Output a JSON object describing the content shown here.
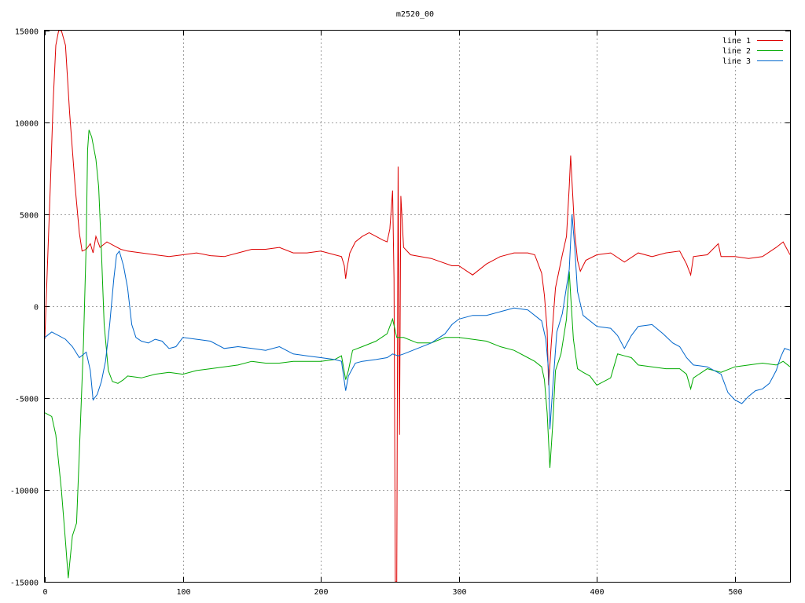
{
  "chart_data": {
    "type": "line",
    "title": "m2520_00",
    "xlabel": "",
    "ylabel": "",
    "xlim": [
      0,
      540
    ],
    "ylim": [
      -15000,
      15000
    ],
    "grid": true,
    "legend_position": "top-right",
    "x_ticks": [
      0,
      100,
      200,
      300,
      400,
      500
    ],
    "y_ticks": [
      -15000,
      -10000,
      -5000,
      0,
      5000,
      10000,
      15000
    ],
    "x_tick_labels": [
      "0",
      "100",
      "200",
      "300",
      "400",
      "500"
    ],
    "y_tick_labels": [
      "-15000",
      "-10000",
      "-5000",
      "0",
      "5000",
      "10000",
      "15000"
    ],
    "series": [
      {
        "name": "line 1",
        "color": "#dd0000",
        "points": [
          [
            0,
            -1800
          ],
          [
            2,
            2400
          ],
          [
            4,
            6500
          ],
          [
            6,
            11000
          ],
          [
            8,
            14200
          ],
          [
            10,
            15000
          ],
          [
            12,
            15000
          ],
          [
            15,
            14200
          ],
          [
            18,
            10500
          ],
          [
            22,
            6500
          ],
          [
            25,
            4000
          ],
          [
            27,
            3000
          ],
          [
            30,
            3100
          ],
          [
            33,
            3400
          ],
          [
            35,
            2900
          ],
          [
            37,
            3800
          ],
          [
            40,
            3200
          ],
          [
            45,
            3500
          ],
          [
            50,
            3300
          ],
          [
            55,
            3100
          ],
          [
            60,
            3000
          ],
          [
            70,
            2900
          ],
          [
            80,
            2800
          ],
          [
            90,
            2700
          ],
          [
            100,
            2800
          ],
          [
            110,
            2900
          ],
          [
            120,
            2750
          ],
          [
            130,
            2700
          ],
          [
            140,
            2900
          ],
          [
            150,
            3100
          ],
          [
            160,
            3100
          ],
          [
            170,
            3200
          ],
          [
            180,
            2900
          ],
          [
            190,
            2900
          ],
          [
            200,
            3000
          ],
          [
            210,
            2800
          ],
          [
            215,
            2700
          ],
          [
            217,
            2200
          ],
          [
            218,
            1500
          ],
          [
            219,
            2100
          ],
          [
            221,
            2900
          ],
          [
            225,
            3500
          ],
          [
            230,
            3800
          ],
          [
            235,
            4000
          ],
          [
            240,
            3800
          ],
          [
            245,
            3600
          ],
          [
            248,
            3500
          ],
          [
            250,
            4200
          ],
          [
            252,
            6300
          ],
          [
            253,
            1500
          ],
          [
            254,
            -15000
          ],
          [
            255,
            -15000
          ],
          [
            256,
            7600
          ],
          [
            257,
            -7000
          ],
          [
            258,
            6000
          ],
          [
            260,
            3200
          ],
          [
            265,
            2800
          ],
          [
            280,
            2600
          ],
          [
            295,
            2200
          ],
          [
            300,
            2200
          ],
          [
            310,
            1700
          ],
          [
            320,
            2300
          ],
          [
            330,
            2700
          ],
          [
            340,
            2900
          ],
          [
            350,
            2900
          ],
          [
            355,
            2800
          ],
          [
            360,
            1800
          ],
          [
            362,
            600
          ],
          [
            364,
            -1300
          ],
          [
            365,
            -4300
          ],
          [
            367,
            -2000
          ],
          [
            370,
            1000
          ],
          [
            375,
            2800
          ],
          [
            378,
            3800
          ],
          [
            380,
            6500
          ],
          [
            381,
            8200
          ],
          [
            382,
            6800
          ],
          [
            384,
            4000
          ],
          [
            386,
            2500
          ],
          [
            388,
            1900
          ],
          [
            392,
            2500
          ],
          [
            400,
            2800
          ],
          [
            410,
            2900
          ],
          [
            420,
            2400
          ],
          [
            430,
            2900
          ],
          [
            440,
            2700
          ],
          [
            450,
            2900
          ],
          [
            460,
            3000
          ],
          [
            465,
            2300
          ],
          [
            468,
            1700
          ],
          [
            470,
            2700
          ],
          [
            480,
            2800
          ],
          [
            488,
            3400
          ],
          [
            490,
            2700
          ],
          [
            500,
            2700
          ],
          [
            510,
            2600
          ],
          [
            520,
            2700
          ],
          [
            530,
            3200
          ],
          [
            535,
            3500
          ],
          [
            540,
            2800
          ]
        ]
      },
      {
        "name": "line 2",
        "color": "#00aa00",
        "points": [
          [
            0,
            -5800
          ],
          [
            5,
            -6000
          ],
          [
            8,
            -7000
          ],
          [
            12,
            -10000
          ],
          [
            15,
            -12800
          ],
          [
            17,
            -14800
          ],
          [
            20,
            -12500
          ],
          [
            23,
            -11800
          ],
          [
            25,
            -8000
          ],
          [
            28,
            -2000
          ],
          [
            30,
            3500
          ],
          [
            31,
            8500
          ],
          [
            32,
            9600
          ],
          [
            34,
            9200
          ],
          [
            37,
            8000
          ],
          [
            39,
            6500
          ],
          [
            41,
            3000
          ],
          [
            43,
            -1000
          ],
          [
            46,
            -3500
          ],
          [
            49,
            -4100
          ],
          [
            53,
            -4200
          ],
          [
            57,
            -4000
          ],
          [
            60,
            -3800
          ],
          [
            70,
            -3900
          ],
          [
            80,
            -3700
          ],
          [
            90,
            -3600
          ],
          [
            100,
            -3700
          ],
          [
            110,
            -3500
          ],
          [
            120,
            -3400
          ],
          [
            130,
            -3300
          ],
          [
            140,
            -3200
          ],
          [
            150,
            -3000
          ],
          [
            160,
            -3100
          ],
          [
            170,
            -3100
          ],
          [
            180,
            -3000
          ],
          [
            190,
            -3000
          ],
          [
            200,
            -3000
          ],
          [
            210,
            -2900
          ],
          [
            215,
            -2700
          ],
          [
            218,
            -4000
          ],
          [
            220,
            -3500
          ],
          [
            223,
            -2400
          ],
          [
            230,
            -2200
          ],
          [
            240,
            -1900
          ],
          [
            248,
            -1500
          ],
          [
            252,
            -700
          ],
          [
            255,
            -1700
          ],
          [
            260,
            -1700
          ],
          [
            270,
            -2000
          ],
          [
            280,
            -2000
          ],
          [
            290,
            -1700
          ],
          [
            300,
            -1700
          ],
          [
            310,
            -1800
          ],
          [
            320,
            -1900
          ],
          [
            330,
            -2200
          ],
          [
            340,
            -2400
          ],
          [
            350,
            -2800
          ],
          [
            355,
            -3000
          ],
          [
            360,
            -3300
          ],
          [
            362,
            -4000
          ],
          [
            364,
            -5800
          ],
          [
            366,
            -8800
          ],
          [
            368,
            -6500
          ],
          [
            370,
            -3500
          ],
          [
            374,
            -2600
          ],
          [
            378,
            -700
          ],
          [
            380,
            1900
          ],
          [
            381,
            600
          ],
          [
            383,
            -1800
          ],
          [
            386,
            -3400
          ],
          [
            390,
            -3600
          ],
          [
            395,
            -3800
          ],
          [
            400,
            -4300
          ],
          [
            410,
            -3900
          ],
          [
            415,
            -2600
          ],
          [
            420,
            -2700
          ],
          [
            425,
            -2800
          ],
          [
            430,
            -3200
          ],
          [
            440,
            -3300
          ],
          [
            450,
            -3400
          ],
          [
            460,
            -3400
          ],
          [
            465,
            -3700
          ],
          [
            468,
            -4500
          ],
          [
            470,
            -3900
          ],
          [
            480,
            -3400
          ],
          [
            490,
            -3600
          ],
          [
            500,
            -3300
          ],
          [
            510,
            -3200
          ],
          [
            520,
            -3100
          ],
          [
            530,
            -3200
          ],
          [
            535,
            -3000
          ],
          [
            540,
            -3300
          ]
        ]
      },
      {
        "name": "line 3",
        "color": "#0066cc",
        "points": [
          [
            0,
            -1700
          ],
          [
            5,
            -1400
          ],
          [
            10,
            -1600
          ],
          [
            15,
            -1800
          ],
          [
            20,
            -2200
          ],
          [
            25,
            -2800
          ],
          [
            30,
            -2500
          ],
          [
            33,
            -3500
          ],
          [
            35,
            -5100
          ],
          [
            38,
            -4800
          ],
          [
            41,
            -4100
          ],
          [
            44,
            -3000
          ],
          [
            47,
            -1000
          ],
          [
            50,
            1500
          ],
          [
            52,
            2800
          ],
          [
            54,
            3000
          ],
          [
            57,
            2200
          ],
          [
            60,
            1000
          ],
          [
            63,
            -1000
          ],
          [
            66,
            -1700
          ],
          [
            70,
            -1900
          ],
          [
            75,
            -2000
          ],
          [
            80,
            -1800
          ],
          [
            85,
            -1900
          ],
          [
            90,
            -2300
          ],
          [
            95,
            -2200
          ],
          [
            100,
            -1700
          ],
          [
            110,
            -1800
          ],
          [
            120,
            -1900
          ],
          [
            130,
            -2300
          ],
          [
            140,
            -2200
          ],
          [
            150,
            -2300
          ],
          [
            160,
            -2400
          ],
          [
            170,
            -2200
          ],
          [
            180,
            -2600
          ],
          [
            190,
            -2700
          ],
          [
            200,
            -2800
          ],
          [
            210,
            -2900
          ],
          [
            215,
            -3000
          ],
          [
            218,
            -4600
          ],
          [
            220,
            -3800
          ],
          [
            225,
            -3100
          ],
          [
            230,
            -3000
          ],
          [
            240,
            -2900
          ],
          [
            248,
            -2800
          ],
          [
            252,
            -2600
          ],
          [
            256,
            -2700
          ],
          [
            260,
            -2600
          ],
          [
            270,
            -2300
          ],
          [
            280,
            -2000
          ],
          [
            290,
            -1500
          ],
          [
            295,
            -1000
          ],
          [
            300,
            -700
          ],
          [
            310,
            -500
          ],
          [
            320,
            -500
          ],
          [
            330,
            -300
          ],
          [
            340,
            -100
          ],
          [
            350,
            -200
          ],
          [
            360,
            -800
          ],
          [
            363,
            -1800
          ],
          [
            365,
            -3500
          ],
          [
            366,
            -6700
          ],
          [
            368,
            -4500
          ],
          [
            371,
            -1400
          ],
          [
            375,
            -400
          ],
          [
            380,
            2000
          ],
          [
            382,
            5000
          ],
          [
            384,
            3200
          ],
          [
            386,
            800
          ],
          [
            390,
            -500
          ],
          [
            400,
            -1100
          ],
          [
            410,
            -1200
          ],
          [
            415,
            -1600
          ],
          [
            420,
            -2300
          ],
          [
            425,
            -1600
          ],
          [
            430,
            -1100
          ],
          [
            440,
            -1000
          ],
          [
            448,
            -1500
          ],
          [
            455,
            -2000
          ],
          [
            460,
            -2200
          ],
          [
            465,
            -2800
          ],
          [
            470,
            -3200
          ],
          [
            480,
            -3300
          ],
          [
            490,
            -3700
          ],
          [
            495,
            -4700
          ],
          [
            500,
            -5100
          ],
          [
            505,
            -5300
          ],
          [
            510,
            -4900
          ],
          [
            515,
            -4600
          ],
          [
            520,
            -4500
          ],
          [
            525,
            -4200
          ],
          [
            530,
            -3500
          ],
          [
            533,
            -2800
          ],
          [
            536,
            -2300
          ],
          [
            540,
            -2400
          ]
        ]
      }
    ]
  }
}
